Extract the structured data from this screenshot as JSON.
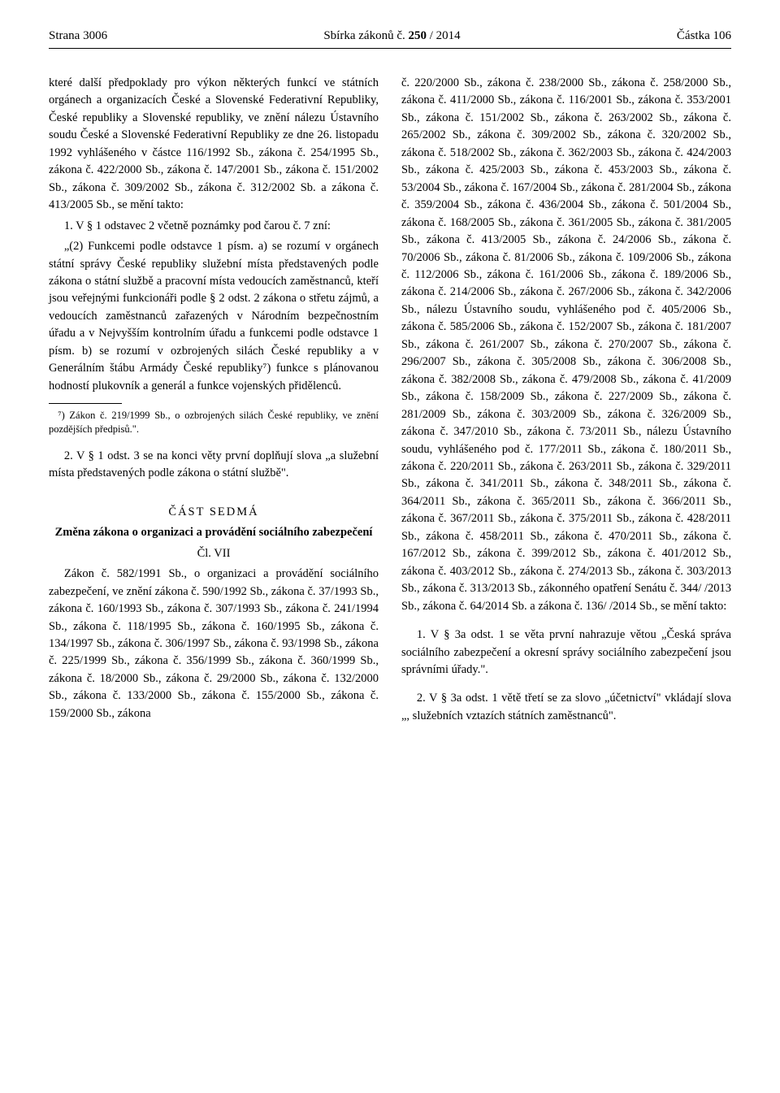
{
  "header": {
    "left": "Strana 3006",
    "center_prefix": "Sbírka zákonů č. ",
    "center_bold": "250",
    "center_suffix": " / 2014",
    "right": "Částka 106"
  },
  "left_col": {
    "p1": "které další předpoklady pro výkon některých funkcí ve státních orgánech a organizacích České a Slovenské Federativní Republiky, České republiky a Slovenské republiky, ve znění nálezu Ústavního soudu České a Slovenské Federativní Republiky ze dne 26. listopadu 1992 vyhlášeného v částce 116/1992 Sb., zákona č. 254/1995 Sb., zákona č. 422/2000 Sb., zákona č. 147/2001 Sb., zákona č. 151/2002 Sb., zákona č. 309/2002 Sb., zákona č. 312/2002 Sb. a zákona č. 413/2005 Sb., se mění takto:",
    "li1": "1. V § 1 odstavec 2 včetně poznámky pod čarou č. 7 zní:",
    "p2": "„(2) Funkcemi podle odstavce 1 písm. a) se rozumí v orgánech státní správy České republiky služební místa představených podle zákona o státní službě a pracovní místa vedoucích zaměstnanců, kteří jsou veřejnými funkcionáři podle § 2 odst. 2 zákona o střetu zájmů, a vedoucích zaměstnanců zařazených v Národním bezpečnostním úřadu a v Nejvyšším kontrolním úřadu a funkcemi podle odstavce 1 písm. b) se rozumí v ozbrojených silách České republiky a v Generálním štábu Armády České republiky⁷) funkce s plánovanou hodností plukovník a generál a funkce vojenských přidělenců.",
    "fn": "⁷) Zákon č. 219/1999 Sb., o ozbrojených silách České republiky, ve znění pozdějších předpisů.\".",
    "li2": "2. V § 1 odst. 3 se na konci věty první doplňují slova „a služební místa představených podle zákona o státní službě\".",
    "part_head": "ČÁST SEDMÁ",
    "part_sub": "Změna zákona o organizaci a provádění sociálního zabezpečení",
    "cl": "Čl. VII",
    "p3": "Zákon č. 582/1991 Sb., o organizaci a provádění sociálního zabezpečení, ve znění zákona č. 590/1992 Sb., zákona č. 37/1993 Sb., zákona č. 160/1993 Sb., zákona č. 307/1993 Sb., zákona č. 241/1994 Sb., zákona č. 118/1995 Sb., zákona č. 160/1995 Sb., zákona č. 134/1997 Sb., zákona č. 306/1997 Sb., zákona č. 93/1998 Sb., zákona č. 225/1999 Sb., zákona č. 356/1999 Sb., zákona č. 360/1999 Sb., zákona č. 18/2000 Sb., zákona č. 29/2000 Sb., zákona č. 132/2000 Sb., zákona č. 133/2000 Sb., zákona č. 155/2000 Sb., zákona č. 159/2000 Sb., zákona"
  },
  "right_col": {
    "p1": "č. 220/2000 Sb., zákona č. 238/2000 Sb., zákona č. 258/2000 Sb., zákona č. 411/2000 Sb., zákona č. 116/2001 Sb., zákona č. 353/2001 Sb., zákona č. 151/2002 Sb., zákona č. 263/2002 Sb., zákona č. 265/2002 Sb., zákona č. 309/2002 Sb., zákona č. 320/2002 Sb., zákona č. 518/2002 Sb., zákona č. 362/2003 Sb., zákona č. 424/2003 Sb., zákona č. 425/2003 Sb., zákona č. 453/2003 Sb., zákona č. 53/2004 Sb., zákona č. 167/2004 Sb., zákona č. 281/2004 Sb., zákona č. 359/2004 Sb., zákona č. 436/2004 Sb., zákona č. 501/2004 Sb., zákona č. 168/2005 Sb., zákona č. 361/2005 Sb., zákona č. 381/2005 Sb., zákona č. 413/2005 Sb., zákona č. 24/2006 Sb., zákona č. 70/2006 Sb., zákona č. 81/2006 Sb., zákona č. 109/2006 Sb., zákona č. 112/2006 Sb., zákona č. 161/2006 Sb., zákona č. 189/2006 Sb., zákona č. 214/2006 Sb., zákona č. 267/2006 Sb., zákona č. 342/2006 Sb., nálezu Ústavního soudu, vyhlášeného pod č. 405/2006 Sb., zákona č. 585/2006 Sb., zákona č. 152/2007 Sb., zákona č. 181/2007 Sb., zákona č. 261/2007 Sb., zákona č. 270/2007 Sb., zákona č. 296/2007 Sb., zákona č. 305/2008 Sb., zákona č. 306/2008 Sb., zákona č. 382/2008 Sb., zákona č. 479/2008 Sb., zákona č. 41/2009 Sb., zákona č. 158/2009 Sb., zákona č. 227/2009 Sb., zákona č. 281/2009 Sb., zákona č. 303/2009 Sb., zákona č. 326/2009 Sb., zákona č. 347/2010 Sb., zákona č. 73/2011 Sb., nálezu Ústavního soudu, vyhlášeného pod č. 177/2011 Sb., zákona č. 180/2011 Sb., zákona č. 220/2011 Sb., zákona č. 263/2011 Sb., zákona č. 329/2011 Sb., zákona č. 341/2011 Sb., zákona č. 348/2011 Sb., zákona č. 364/2011 Sb., zákona č. 365/2011 Sb., zákona č. 366/2011 Sb., zákona č. 367/2011 Sb., zákona č. 375/2011 Sb., zákona č. 428/2011 Sb., zákona č. 458/2011 Sb., zákona č. 470/2011 Sb., zákona č. 167/2012 Sb., zákona č. 399/2012 Sb., zákona č. 401/2012 Sb., zákona č. 403/2012 Sb., zákona č. 274/2013 Sb., zákona č. 303/2013 Sb., zákona č. 313/2013 Sb., zákonného opatření Senátu č. 344/ /2013 Sb., zákona č. 64/2014 Sb. a zákona č. 136/ /2014 Sb., se mění takto:",
    "li1": "1. V § 3a odst. 1 se věta první nahrazuje větou „Česká správa sociálního zabezpečení a okresní správy sociálního zabezpečení jsou správními úřady.\".",
    "li2": "2. V § 3a odst. 1 větě třetí se za slovo „účetnictví\" vkládají slova „, služebních vztazích státních zaměstnanců\"."
  }
}
